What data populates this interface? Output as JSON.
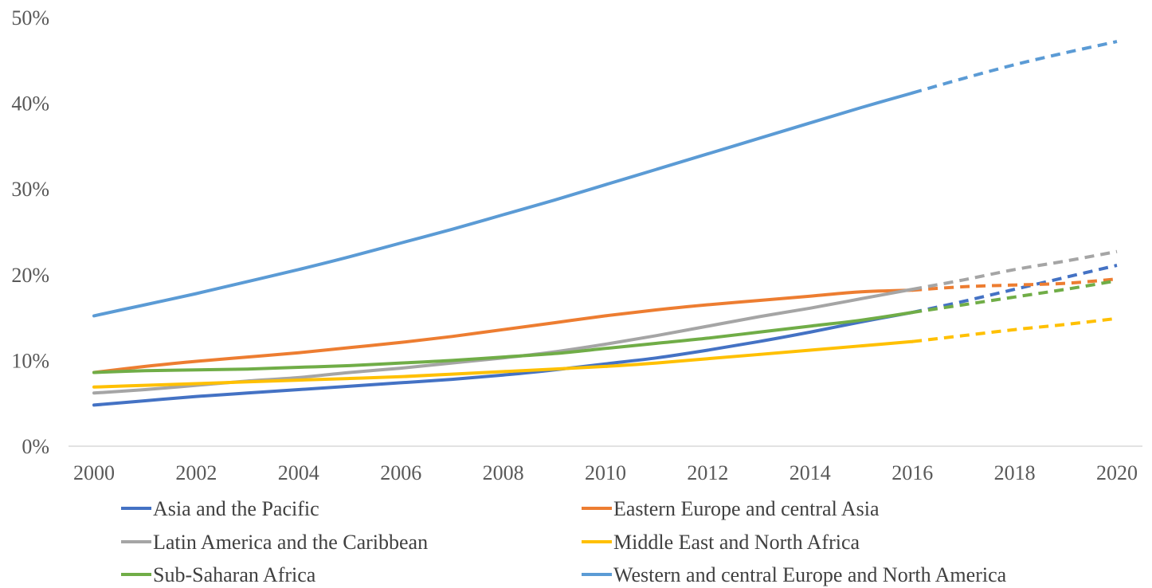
{
  "chart_data": {
    "type": "line",
    "x": [
      2000,
      2001,
      2002,
      2003,
      2004,
      2005,
      2006,
      2007,
      2008,
      2009,
      2010,
      2011,
      2012,
      2013,
      2014,
      2015,
      2016,
      2017,
      2018,
      2019,
      2020
    ],
    "x_ticks": [
      "2000",
      "2002",
      "2004",
      "2006",
      "2008",
      "2010",
      "2012",
      "2014",
      "2016",
      "2018",
      "2020"
    ],
    "y_ticks": [
      "0%",
      "10%",
      "20%",
      "30%",
      "40%",
      "50%"
    ],
    "ylim": [
      0,
      50
    ],
    "y_unit": "%",
    "grid": false,
    "legend_position": "bottom",
    "projection_start_x": 2016,
    "projected_style": "dashed",
    "series": [
      {
        "name": "Asia and the Pacific",
        "color": "#4472C4",
        "values": [
          4.8,
          5.3,
          5.8,
          6.2,
          6.6,
          7.0,
          7.4,
          7.8,
          8.3,
          8.9,
          9.6,
          10.3,
          11.2,
          12.2,
          13.3,
          14.5,
          15.6,
          16.9,
          18.3,
          19.7,
          21.1
        ]
      },
      {
        "name": "Eastern Europe and central Asia",
        "color": "#ED7D31",
        "values": [
          8.6,
          9.3,
          9.9,
          10.4,
          10.9,
          11.5,
          12.1,
          12.8,
          13.6,
          14.4,
          15.2,
          15.9,
          16.5,
          17.0,
          17.5,
          18.0,
          18.2,
          18.6,
          18.8,
          19.0,
          19.5
        ]
      },
      {
        "name": "Latin America and the Caribbean",
        "color": "#A5A5A5",
        "values": [
          6.2,
          6.6,
          7.1,
          7.6,
          8.0,
          8.6,
          9.1,
          9.7,
          10.3,
          11.0,
          11.9,
          12.9,
          14.0,
          15.1,
          16.1,
          17.2,
          18.3,
          19.4,
          20.6,
          21.6,
          22.7
        ]
      },
      {
        "name": "Middle East and North Africa",
        "color": "#FFC000",
        "values": [
          6.9,
          7.1,
          7.3,
          7.5,
          7.7,
          7.9,
          8.1,
          8.4,
          8.7,
          9.0,
          9.3,
          9.7,
          10.2,
          10.7,
          11.2,
          11.7,
          12.2,
          12.9,
          13.6,
          14.2,
          14.9
        ]
      },
      {
        "name": "Sub-Saharan Africa",
        "color": "#70AD47",
        "values": [
          8.6,
          8.8,
          8.9,
          9.0,
          9.2,
          9.4,
          9.7,
          10.0,
          10.4,
          10.8,
          11.4,
          12.0,
          12.6,
          13.3,
          14.0,
          14.7,
          15.6,
          16.5,
          17.4,
          18.3,
          19.3
        ]
      },
      {
        "name": "Western and central Europe and North America",
        "color": "#5B9BD5",
        "values": [
          15.2,
          16.5,
          17.8,
          19.2,
          20.6,
          22.1,
          23.7,
          25.3,
          27.0,
          28.7,
          30.5,
          32.3,
          34.1,
          35.9,
          37.7,
          39.5,
          41.2,
          42.9,
          44.5,
          45.9,
          47.2
        ]
      }
    ]
  }
}
